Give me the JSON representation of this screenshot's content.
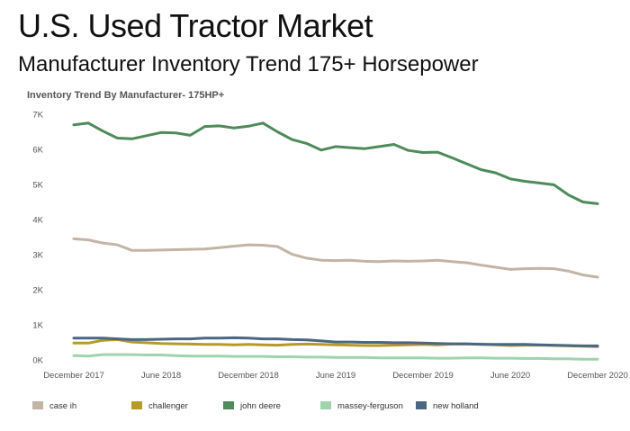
{
  "header": {
    "title": "U.S. Used Tractor Market",
    "subtitle": "Manufacturer Inventory Trend 175+ Horsepower"
  },
  "chart_data": {
    "type": "line",
    "title": "Inventory Trend By Manufacturer- 175HP+",
    "xlabel": "",
    "ylabel": "",
    "ylim": [
      0,
      7000
    ],
    "y_ticks": [
      {
        "value": 0,
        "label": "0K"
      },
      {
        "value": 1000,
        "label": "1K"
      },
      {
        "value": 2000,
        "label": "2K"
      },
      {
        "value": 3000,
        "label": "3K"
      },
      {
        "value": 4000,
        "label": "4K"
      },
      {
        "value": 5000,
        "label": "5K"
      },
      {
        "value": 6000,
        "label": "6K"
      },
      {
        "value": 7000,
        "label": "7K"
      }
    ],
    "x": [
      "2017-12",
      "2018-01",
      "2018-02",
      "2018-03",
      "2018-04",
      "2018-05",
      "2018-06",
      "2018-07",
      "2018-08",
      "2018-09",
      "2018-10",
      "2018-11",
      "2018-12",
      "2019-01",
      "2019-02",
      "2019-03",
      "2019-04",
      "2019-05",
      "2019-06",
      "2019-07",
      "2019-08",
      "2019-09",
      "2019-10",
      "2019-11",
      "2019-12",
      "2020-01",
      "2020-02",
      "2020-03",
      "2020-04",
      "2020-05",
      "2020-06",
      "2020-07",
      "2020-08",
      "2020-09",
      "2020-10",
      "2020-11",
      "2020-12"
    ],
    "x_ticks": [
      {
        "value": "2017-12",
        "label": "December 2017"
      },
      {
        "value": "2018-06",
        "label": "June 2018"
      },
      {
        "value": "2018-12",
        "label": "December 2018"
      },
      {
        "value": "2019-06",
        "label": "June 2019"
      },
      {
        "value": "2019-12",
        "label": "December 2019"
      },
      {
        "value": "2020-06",
        "label": "June 2020"
      },
      {
        "value": "2020-12",
        "label": "December 2020"
      }
    ],
    "grid": false,
    "legend_position": "bottom",
    "series": [
      {
        "name": "case ih",
        "color": "#c3b4a5",
        "values": [
          3450,
          3420,
          3330,
          3280,
          3120,
          3120,
          3130,
          3140,
          3150,
          3160,
          3200,
          3240,
          3280,
          3270,
          3230,
          3010,
          2900,
          2840,
          2830,
          2840,
          2810,
          2800,
          2820,
          2810,
          2820,
          2840,
          2800,
          2770,
          2700,
          2640,
          2580,
          2600,
          2610,
          2600,
          2530,
          2420,
          2360
        ]
      },
      {
        "name": "challenger",
        "color": "#b59a2a",
        "values": [
          480,
          480,
          560,
          580,
          510,
          490,
          470,
          460,
          450,
          440,
          440,
          430,
          440,
          430,
          420,
          440,
          450,
          440,
          430,
          420,
          410,
          410,
          420,
          430,
          440,
          430,
          450,
          450,
          450,
          430,
          410,
          420,
          420,
          410,
          400,
          390,
          380
        ]
      },
      {
        "name": "john deere",
        "color": "#4e8b5a",
        "values": [
          6700,
          6750,
          6520,
          6320,
          6300,
          6390,
          6480,
          6470,
          6400,
          6650,
          6670,
          6610,
          6660,
          6750,
          6500,
          6280,
          6170,
          5980,
          6080,
          6050,
          6020,
          6080,
          6140,
          5970,
          5910,
          5920,
          5760,
          5590,
          5420,
          5330,
          5160,
          5090,
          5040,
          4990,
          4700,
          4500,
          4450
        ]
      },
      {
        "name": "massey-ferguson",
        "color": "#9fd3ac",
        "values": [
          120,
          110,
          150,
          150,
          150,
          140,
          140,
          120,
          110,
          110,
          110,
          100,
          100,
          100,
          90,
          90,
          80,
          80,
          70,
          70,
          70,
          60,
          60,
          60,
          60,
          50,
          50,
          60,
          60,
          50,
          50,
          40,
          40,
          30,
          30,
          20,
          20
        ]
      },
      {
        "name": "new holland",
        "color": "#4a6783",
        "values": [
          620,
          620,
          620,
          600,
          580,
          580,
          590,
          600,
          600,
          620,
          620,
          630,
          620,
          600,
          600,
          580,
          570,
          540,
          510,
          510,
          500,
          500,
          490,
          490,
          480,
          470,
          460,
          460,
          440,
          440,
          440,
          440,
          430,
          420,
          410,
          400,
          400
        ]
      }
    ]
  }
}
